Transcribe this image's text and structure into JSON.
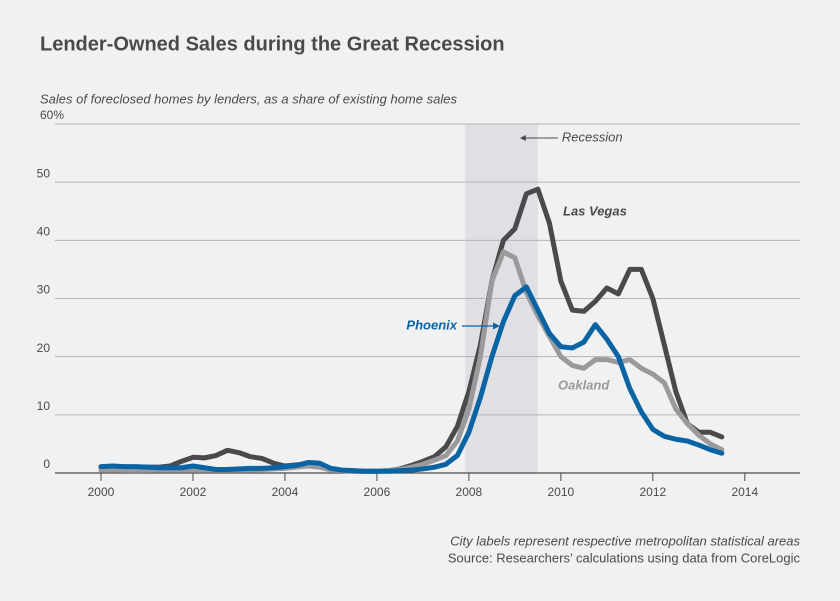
{
  "chart_data": {
    "type": "line",
    "title": "Lender-Owned Sales during the Great Recession",
    "subtitle": "Sales of foreclosed homes by lenders, as a share of existing home sales",
    "notes": [
      "City labels represent respective metropolitan statistical areas",
      "Source: Researchers’ calculations using data from CoreLogic"
    ],
    "shade": {
      "range": [
        2007.92,
        2009.5
      ],
      "label": "Recession"
    },
    "xlim": [
      1999,
      2015.2
    ],
    "xticks": [
      2000,
      2002,
      2004,
      2006,
      2008,
      2010,
      2012,
      2014
    ],
    "ylim": [
      0,
      60
    ],
    "yticks": [
      0,
      10,
      20,
      30,
      40,
      50,
      {
        "value": 60,
        "label": "60%"
      }
    ],
    "grid": true,
    "x": [
      2000,
      2000.25,
      2000.5,
      2000.75,
      2001,
      2001.25,
      2001.5,
      2001.75,
      2002,
      2002.25,
      2002.5,
      2002.75,
      2003,
      2003.25,
      2003.5,
      2003.75,
      2004,
      2004.25,
      2004.5,
      2004.75,
      2005,
      2005.25,
      2005.5,
      2005.75,
      2006,
      2006.25,
      2006.5,
      2006.75,
      2007,
      2007.25,
      2007.5,
      2007.75,
      2008,
      2008.25,
      2008.5,
      2008.75,
      2009,
      2009.25,
      2009.5,
      2009.75,
      2010,
      2010.25,
      2010.5,
      2010.75,
      2011,
      2011.25,
      2011.5,
      2011.75,
      2012,
      2012.25,
      2012.5,
      2012.75,
      2013,
      2013.25,
      2013.5
    ],
    "series": [
      {
        "name": "Las Vegas",
        "color": "#4a4a4c",
        "values": [
          1,
          1,
          1,
          1,
          1,
          1,
          1.2,
          2,
          2.7,
          2.6,
          3,
          3.9,
          3.5,
          2.8,
          2.5,
          1.7,
          1.2,
          1.4,
          1.5,
          1.2,
          0.6,
          0.4,
          0.3,
          0.3,
          0.3,
          0.4,
          0.7,
          1.3,
          2,
          2.8,
          4.5,
          8,
          14,
          22,
          33,
          40,
          42,
          48,
          48.8,
          43,
          33,
          28,
          27.8,
          29.5,
          31.8,
          30.8,
          35,
          35,
          30,
          22,
          14,
          8.5,
          7,
          7,
          6.2
        ]
      },
      {
        "name": "Oakland",
        "color": "#9a9a9c",
        "values": [
          0.5,
          0.5,
          0.6,
          0.6,
          0.6,
          0.5,
          0.5,
          0.5,
          0.5,
          0.5,
          0.5,
          0.5,
          0.5,
          0.5,
          0.6,
          0.7,
          0.8,
          1,
          1.2,
          1,
          0.5,
          0.4,
          0.3,
          0.3,
          0.3,
          0.4,
          0.6,
          1,
          1.5,
          2.2,
          3,
          5.5,
          11,
          20,
          33,
          38,
          37,
          31,
          27,
          23.5,
          20,
          18.5,
          18,
          19.5,
          19.5,
          19,
          19.5,
          18,
          17,
          15.5,
          11,
          8.5,
          6.5,
          5,
          4
        ]
      },
      {
        "name": "Phoenix",
        "color": "#0a64a4",
        "values": [
          1.1,
          1.2,
          1.1,
          1.1,
          1,
          0.9,
          0.9,
          0.9,
          1.2,
          0.9,
          0.6,
          0.6,
          0.7,
          0.8,
          0.8,
          0.9,
          1.1,
          1.3,
          1.8,
          1.7,
          0.8,
          0.5,
          0.4,
          0.3,
          0.3,
          0.3,
          0.4,
          0.5,
          0.7,
          1,
          1.5,
          3,
          7,
          13,
          20,
          26,
          30.5,
          32,
          28,
          24,
          21.7,
          21.5,
          22.5,
          25.5,
          23,
          20,
          14.5,
          10.5,
          7.5,
          6.3,
          5.8,
          5.5,
          4.8,
          4,
          3.4
        ]
      }
    ]
  }
}
